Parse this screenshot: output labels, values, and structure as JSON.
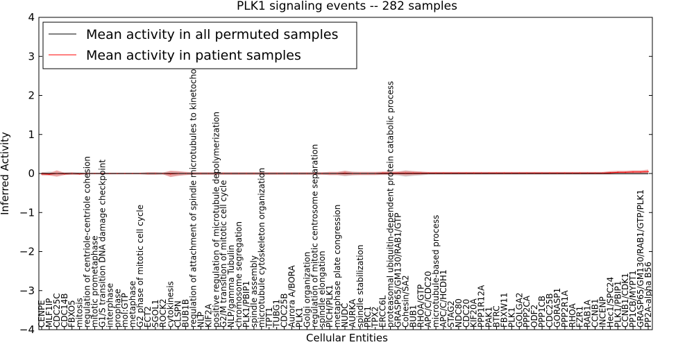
{
  "chart_data": {
    "type": "line",
    "title": "PLK1 signaling events -- 282 samples",
    "xlabel": "Cellular Entities",
    "ylabel": "Inferred Activity",
    "ylim": [
      -4,
      4
    ],
    "yticks": [
      "−4",
      "−3",
      "−2",
      "−1",
      "0",
      "1",
      "2",
      "3",
      "4"
    ],
    "yticks_values": [
      -4,
      -3,
      -2,
      -1,
      0,
      1,
      2,
      3,
      4
    ],
    "legend_position": "top-left",
    "categories": [
      "CENPE",
      "MLF1IP",
      "CDC25C",
      "CDC14B",
      "FBXO5",
      "mitosis",
      "regulation of centriole-centriole cohesion",
      "mitotic prometaphase",
      "G1/S transition DNA damage checkpoint",
      "interphase",
      "prophase",
      "mol:GTP",
      "metaphase",
      "G2 phase of mitotic cell cycle",
      "ECT2",
      "SGOL1",
      "ROCK2",
      "cytokinesis",
      "CLSPN",
      "BUB1B",
      "regulation of attachment of spindle microtubules to kinetochore",
      "NLP",
      "KIF2A",
      "positive regulation of microtubule depolymerization",
      "G2/M transition of mitotic cell cycle",
      "NLP/gamma Tubulin",
      "chromosome segregation",
      "PLK1/PBIP1",
      "spindle assembly",
      "microtubule cytoskeleton organization",
      "TPT1",
      "TUBG1",
      "CDC25B",
      "Aurora A/BORA",
      "PLK1",
      "Golgi organization",
      "regulation of mitotic centrosome separation",
      "spindle elongation",
      "PICH/PLK1",
      "metaphase plate congression",
      "NUDC",
      "AURKA",
      "spindle stabilization",
      "PRC1",
      "TPX2",
      "ERCC6L",
      "proteasomal ubiquitin-dependent protein catabolic process",
      "GRASP65/GM130/RAB1/GTP",
      "Cohesin/SA2",
      "BUB1",
      "RHOA/GTP",
      "APC/C/CDC20",
      "microtubule-based process",
      "APC/C/HCDH1",
      "STAG2",
      "NDC80",
      "CDC20",
      "KIF20A",
      "PPP1R12A",
      "PAK1",
      "BTRC",
      "FBXW11",
      "PLK1",
      "GOLGA2",
      "PPP2CA",
      "ODF2",
      "PPP1CB",
      "CDC25B",
      "GORASP1",
      "PPP2R1A",
      "RHOA",
      "FZR1",
      "RAB1A",
      "CCNB1",
      "INCENP",
      "Hec1/SPC24",
      "PLK1/PBIP1",
      "CCNB1/CDK1",
      "PP1CB/MYPT1",
      "GRASP65/GM130/RAB1/GTP/PLK1",
      "PP2A-alpha B56"
    ],
    "series": [
      {
        "name": "Mean activity in all permuted samples",
        "color": "#000000",
        "values": [
          0,
          0,
          0,
          0,
          0,
          0,
          0,
          0,
          0,
          0,
          0,
          0,
          0,
          0,
          0,
          0,
          0,
          0,
          0,
          0,
          0,
          0,
          0,
          0,
          0,
          0,
          0,
          0,
          0,
          0,
          0,
          0,
          0,
          0,
          0,
          0,
          0,
          0,
          0,
          0,
          0,
          0,
          0,
          0,
          0,
          0,
          0,
          0,
          0,
          0,
          0,
          0,
          0,
          0,
          0,
          0,
          0,
          0,
          0,
          0,
          0,
          0,
          0,
          0,
          0,
          0,
          0,
          0,
          0,
          0,
          0,
          0,
          0,
          0,
          0,
          0,
          0,
          0,
          0,
          0,
          0
        ]
      },
      {
        "name": "Mean activity in patient samples",
        "color": "#ff0000",
        "band_color": "#e88c8c",
        "values": [
          -0.01,
          -0.02,
          0.0,
          -0.01,
          0.0,
          -0.01,
          0.0,
          0.0,
          0.0,
          0.0,
          0.0,
          0.0,
          0.0,
          0.0,
          0.0,
          0.0,
          0.0,
          -0.01,
          0.0,
          0.0,
          0.0,
          0.0,
          0.0,
          0.0,
          0.0,
          0.0,
          0.0,
          0.0,
          0.0,
          0.0,
          0.0,
          0.0,
          0.0,
          0.0,
          0.0,
          0.0,
          0.0,
          0.0,
          0.0,
          0.0,
          0.01,
          0.0,
          0.0,
          0.0,
          0.0,
          0.01,
          0.01,
          0.01,
          0.01,
          0.01,
          0.01,
          0.01,
          0.01,
          0.01,
          0.01,
          0.01,
          0.01,
          0.01,
          0.01,
          0.01,
          0.01,
          0.01,
          0.01,
          0.01,
          0.01,
          0.01,
          0.01,
          0.01,
          0.01,
          0.01,
          0.01,
          0.01,
          0.01,
          0.01,
          0.01,
          0.02,
          0.03,
          0.03,
          0.04,
          0.04,
          0.05
        ],
        "spread": [
          0.04,
          0.03,
          0.08,
          0.03,
          0.03,
          0.02,
          0.02,
          0.02,
          0.02,
          0.02,
          0.02,
          0.02,
          0.02,
          0.02,
          0.03,
          0.03,
          0.02,
          0.08,
          0.06,
          0.04,
          0.03,
          0.03,
          0.03,
          0.03,
          0.03,
          0.03,
          0.03,
          0.03,
          0.03,
          0.03,
          0.03,
          0.03,
          0.03,
          0.03,
          0.03,
          0.03,
          0.03,
          0.03,
          0.04,
          0.04,
          0.06,
          0.04,
          0.04,
          0.04,
          0.04,
          0.04,
          0.04,
          0.04,
          0.06,
          0.05,
          0.04,
          0.03,
          0.03,
          0.03,
          0.03,
          0.03,
          0.03,
          0.03,
          0.03,
          0.03,
          0.03,
          0.03,
          0.03,
          0.03,
          0.03,
          0.03,
          0.03,
          0.03,
          0.03,
          0.03,
          0.03,
          0.03,
          0.03,
          0.03,
          0.03,
          0.04,
          0.04,
          0.04,
          0.04,
          0.04,
          0.05
        ]
      }
    ],
    "permuted_band_color": "#bdbdbd",
    "permuted_spread": [
      0.03,
      0.05,
      0.04,
      0.03,
      0.03,
      0.03,
      0.02,
      0.02,
      0.02,
      0.02,
      0.02,
      0.02,
      0.02,
      0.02,
      0.03,
      0.03,
      0.03,
      0.06,
      0.05,
      0.04,
      0.03,
      0.03,
      0.03,
      0.03,
      0.03,
      0.03,
      0.03,
      0.03,
      0.03,
      0.03,
      0.03,
      0.03,
      0.03,
      0.03,
      0.03,
      0.03,
      0.03,
      0.03,
      0.04,
      0.04,
      0.07,
      0.05,
      0.04,
      0.04,
      0.04,
      0.04,
      0.04,
      0.05,
      0.08,
      0.06,
      0.05,
      0.03,
      0.03,
      0.03,
      0.03,
      0.03,
      0.03,
      0.03,
      0.03,
      0.03,
      0.03,
      0.03,
      0.03,
      0.03,
      0.03,
      0.03,
      0.03,
      0.03,
      0.03,
      0.03,
      0.03,
      0.03,
      0.03,
      0.03,
      0.03,
      0.03,
      0.03,
      0.03,
      0.03,
      0.03,
      0.03
    ]
  }
}
